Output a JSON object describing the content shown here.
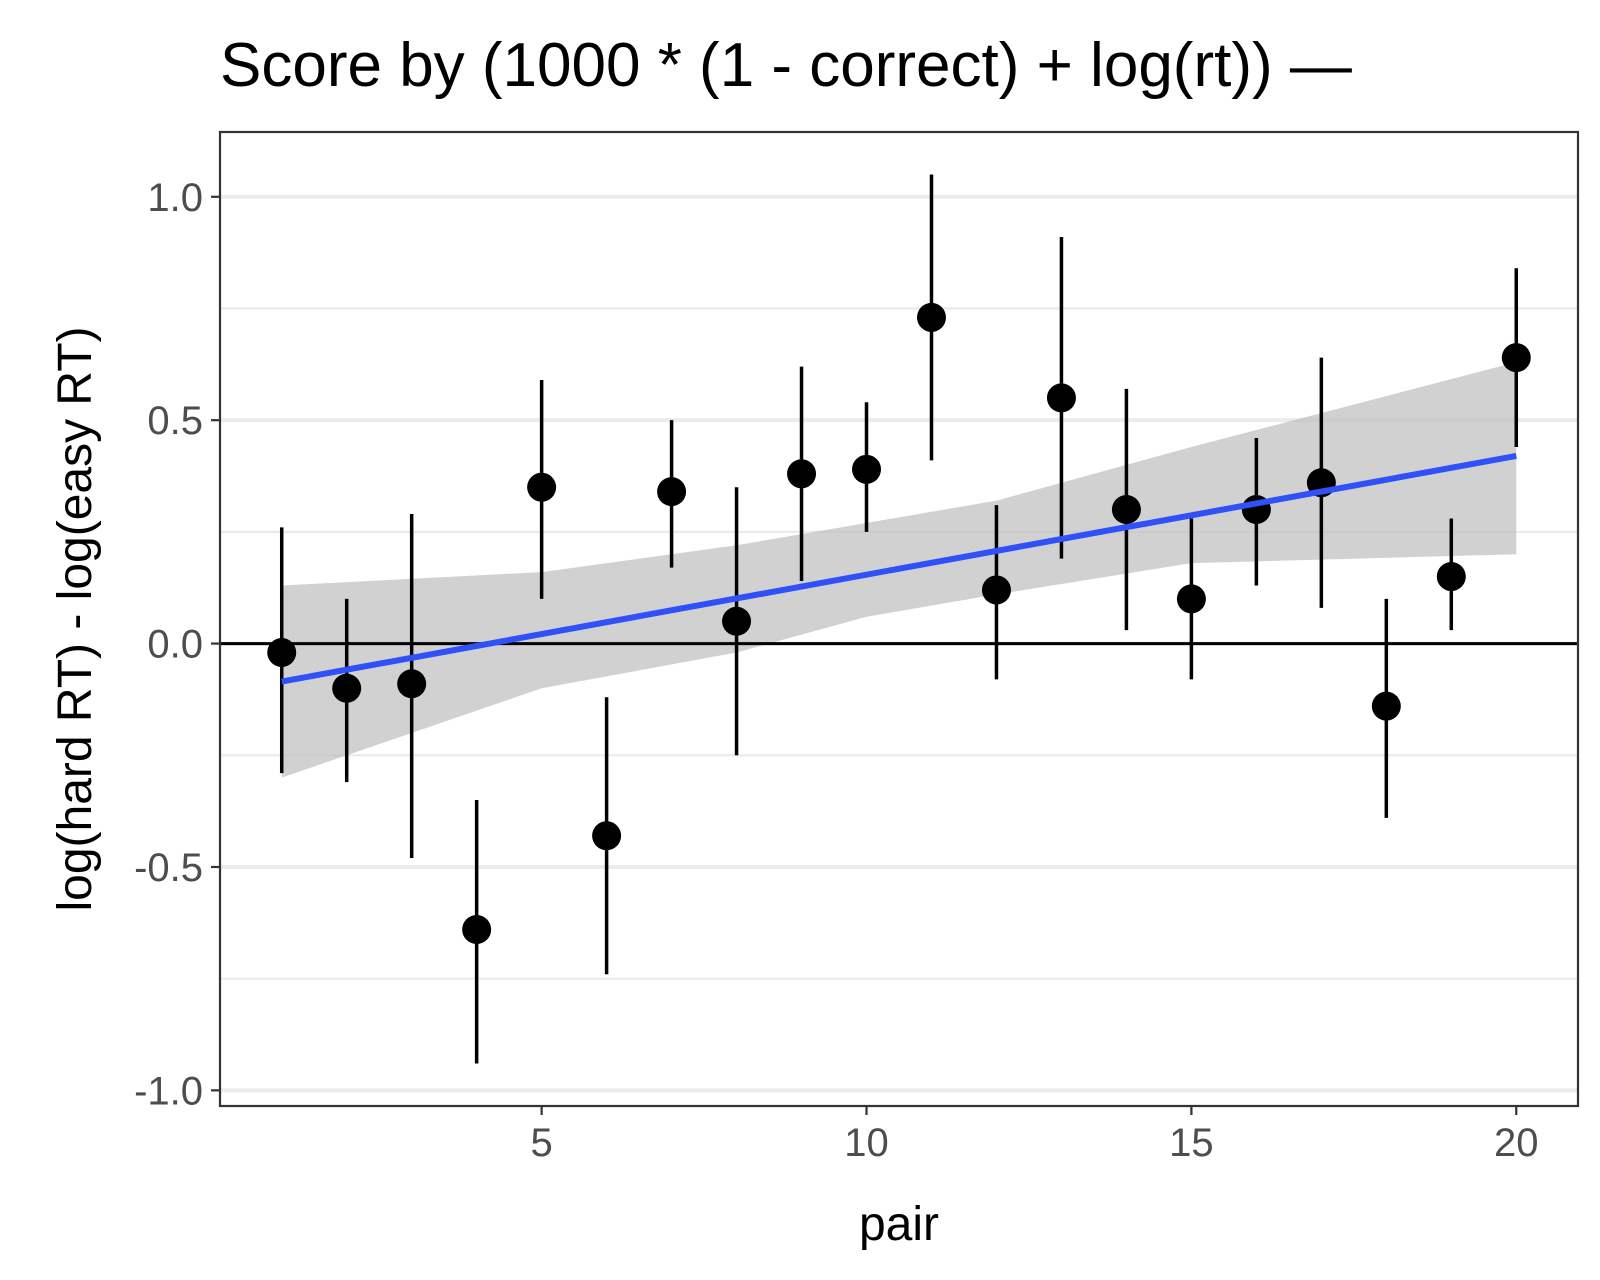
{
  "chart_data": {
    "type": "scatter",
    "title": "Score by (1000 * (1 - correct) + log(rt)) —",
    "xlabel": "pair",
    "ylabel": "log(hard RT) - log(easy RT)",
    "xlim": [
      0.05,
      20.95
    ],
    "ylim": [
      -1.035,
      1.145
    ],
    "x_ticks": [
      5,
      10,
      15,
      20
    ],
    "x_tick_labels": [
      "5",
      "10",
      "15",
      "20"
    ],
    "y_ticks": [
      -1.0,
      -0.5,
      0.0,
      0.5,
      1.0
    ],
    "y_tick_labels": [
      "-1.0",
      "-0.5",
      "0.0",
      "0.5",
      "1.0"
    ],
    "grid": true,
    "reference_line_y": 0,
    "points": [
      {
        "x": 1,
        "y": -0.02,
        "ymin": -0.29,
        "ymax": 0.26
      },
      {
        "x": 2,
        "y": -0.1,
        "ymin": -0.31,
        "ymax": 0.1
      },
      {
        "x": 3,
        "y": -0.09,
        "ymin": -0.48,
        "ymax": 0.29
      },
      {
        "x": 4,
        "y": -0.64,
        "ymin": -0.94,
        "ymax": -0.35
      },
      {
        "x": 5,
        "y": 0.35,
        "ymin": 0.1,
        "ymax": 0.59
      },
      {
        "x": 6,
        "y": -0.43,
        "ymin": -0.74,
        "ymax": -0.12
      },
      {
        "x": 7,
        "y": 0.34,
        "ymin": 0.17,
        "ymax": 0.5
      },
      {
        "x": 8,
        "y": 0.05,
        "ymin": -0.25,
        "ymax": 0.35
      },
      {
        "x": 9,
        "y": 0.38,
        "ymin": 0.14,
        "ymax": 0.62
      },
      {
        "x": 10,
        "y": 0.39,
        "ymin": 0.25,
        "ymax": 0.54
      },
      {
        "x": 11,
        "y": 0.73,
        "ymin": 0.41,
        "ymax": 1.05
      },
      {
        "x": 12,
        "y": 0.12,
        "ymin": -0.08,
        "ymax": 0.31
      },
      {
        "x": 13,
        "y": 0.55,
        "ymin": 0.19,
        "ymax": 0.91
      },
      {
        "x": 14,
        "y": 0.3,
        "ymin": 0.03,
        "ymax": 0.57
      },
      {
        "x": 15,
        "y": 0.1,
        "ymin": -0.08,
        "ymax": 0.28
      },
      {
        "x": 16,
        "y": 0.3,
        "ymin": 0.13,
        "ymax": 0.46
      },
      {
        "x": 17,
        "y": 0.36,
        "ymin": 0.08,
        "ymax": 0.64
      },
      {
        "x": 18,
        "y": -0.14,
        "ymin": -0.39,
        "ymax": 0.1
      },
      {
        "x": 19,
        "y": 0.15,
        "ymin": 0.03,
        "ymax": 0.28
      },
      {
        "x": 20,
        "y": 0.64,
        "ymin": 0.44,
        "ymax": 0.84
      }
    ],
    "trend": {
      "method": "linear",
      "color": "#3050f8",
      "band_color": "#bdbdbd",
      "x": [
        1,
        20
      ],
      "y": [
        -0.085,
        0.42
      ],
      "band": [
        {
          "x": 1,
          "lower": -0.3,
          "upper": 0.13
        },
        {
          "x": 5,
          "lower": -0.1,
          "upper": 0.16
        },
        {
          "x": 8,
          "lower": -0.02,
          "upper": 0.22
        },
        {
          "x": 10,
          "lower": 0.06,
          "upper": 0.27
        },
        {
          "x": 12,
          "lower": 0.11,
          "upper": 0.32
        },
        {
          "x": 15,
          "lower": 0.18,
          "upper": 0.44
        },
        {
          "x": 20,
          "lower": 0.2,
          "upper": 0.63
        }
      ]
    },
    "colors": {
      "points": "#000000",
      "grid": "#ebebeb",
      "panel_border": "#333333"
    }
  }
}
